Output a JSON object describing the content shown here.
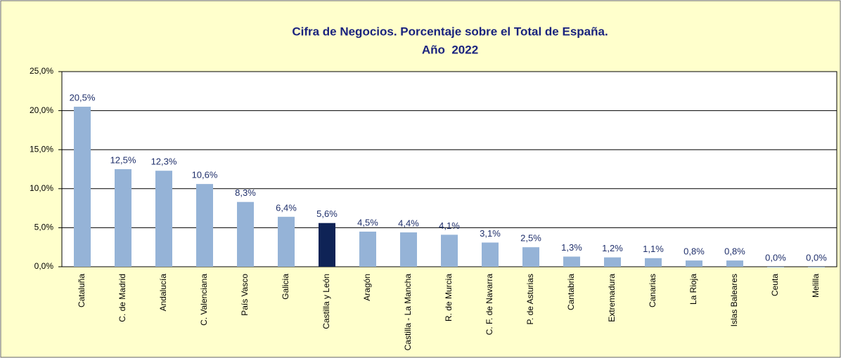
{
  "chart_data": {
    "type": "bar",
    "title": "Cifra de Negocios. Porcentaje sobre el Total de España.",
    "subtitle": "Año  2022",
    "categories": [
      "Cataluña",
      "C. de Madrid",
      "Andalucía",
      "C. Valenciana",
      "País Vasco",
      "Galicia",
      "Castilla y León",
      "Aragón",
      "Castilla - La Mancha",
      "R. de Murcia",
      "C. F. de Navarra",
      "P. de Asturias",
      "Cantabria",
      "Extremadura",
      "Canarias",
      "La Rioja",
      "Islas Baleares",
      "Ceuta",
      "Melilla"
    ],
    "values": [
      20.5,
      12.5,
      12.3,
      10.6,
      8.3,
      6.4,
      5.6,
      4.5,
      4.4,
      4.1,
      3.1,
      2.5,
      1.3,
      1.2,
      1.1,
      0.8,
      0.8,
      0.0,
      0.0
    ],
    "value_labels": [
      "20,5%",
      "12,5%",
      "12,3%",
      "10,6%",
      "8,3%",
      "6,4%",
      "5,6%",
      "4,5%",
      "4,4%",
      "4,1%",
      "3,1%",
      "2,5%",
      "1,3%",
      "1,2%",
      "1,1%",
      "0,8%",
      "0,8%",
      "0,0%",
      "0,0%"
    ],
    "colors": [
      "#95b3d7",
      "#95b3d7",
      "#95b3d7",
      "#95b3d7",
      "#95b3d7",
      "#95b3d7",
      "#0f2356",
      "#95b3d7",
      "#95b3d7",
      "#95b3d7",
      "#95b3d7",
      "#95b3d7",
      "#95b3d7",
      "#95b3d7",
      "#95b3d7",
      "#95b3d7",
      "#95b3d7",
      "#95b3d7",
      "#95b3d7"
    ],
    "ylim": [
      0,
      25
    ],
    "yticks": [
      {
        "value": 0,
        "label": "0,0%"
      },
      {
        "value": 5,
        "label": "5,0%"
      },
      {
        "value": 10,
        "label": "10,0%"
      },
      {
        "value": 15,
        "label": "15,0%"
      },
      {
        "value": 20,
        "label": "20,0%"
      },
      {
        "value": 25,
        "label": "25,0%"
      }
    ],
    "grid": true
  }
}
